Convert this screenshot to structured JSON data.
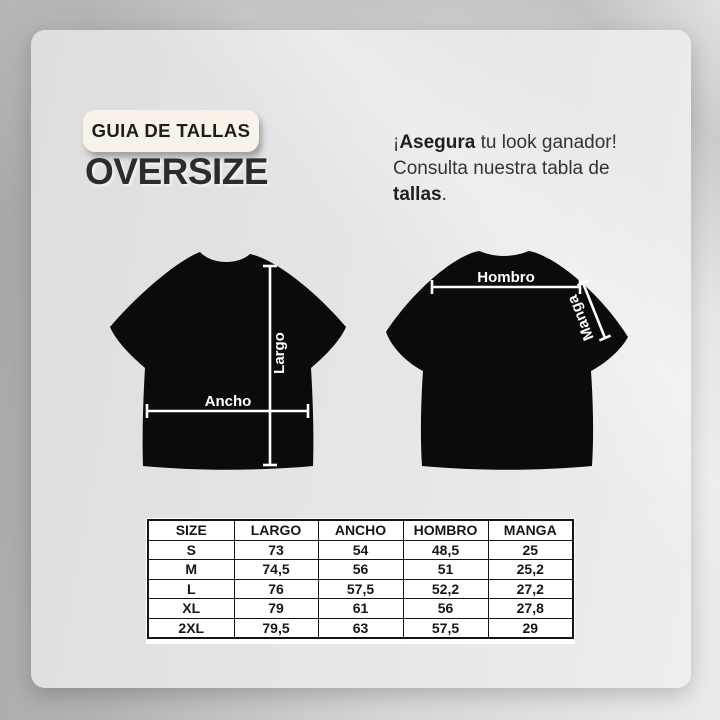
{
  "header": {
    "badge_label": "GUIA DE TALLAS",
    "title": "OVERSIZE"
  },
  "intro": {
    "line1_prefix": "¡",
    "line1_bold": "Asegura",
    "line1_rest": " tu look ganador!",
    "line2": "Consulta nuestra tabla de",
    "line3_bold": "tallas",
    "line3_suffix": "."
  },
  "diagram": {
    "front_shirt": {
      "length_label": "Largo",
      "width_label": "Ancho"
    },
    "back_shirt": {
      "shoulder_label": "Hombro",
      "sleeve_label": "Manga"
    }
  },
  "size_table": {
    "columns": [
      "SIZE",
      "LARGO",
      "ANCHO",
      "HOMBRO",
      "MANGA"
    ],
    "rows": [
      [
        "S",
        "73",
        "54",
        "48,5",
        "25"
      ],
      [
        "M",
        "74,5",
        "56",
        "51",
        "25,2"
      ],
      [
        "L",
        "76",
        "57,5",
        "52,2",
        "27,2"
      ],
      [
        "XL",
        "79",
        "61",
        "56",
        "27,8"
      ],
      [
        "2XL",
        "79,5",
        "63",
        "57,5",
        "29"
      ]
    ]
  },
  "colors": {
    "shirt": "#0b0b0b",
    "badge_bg": "#f8f2e8",
    "card_bg": "#e4e4e4",
    "measure_line": "#ffffff",
    "text_dark": "#2c2c2c"
  }
}
